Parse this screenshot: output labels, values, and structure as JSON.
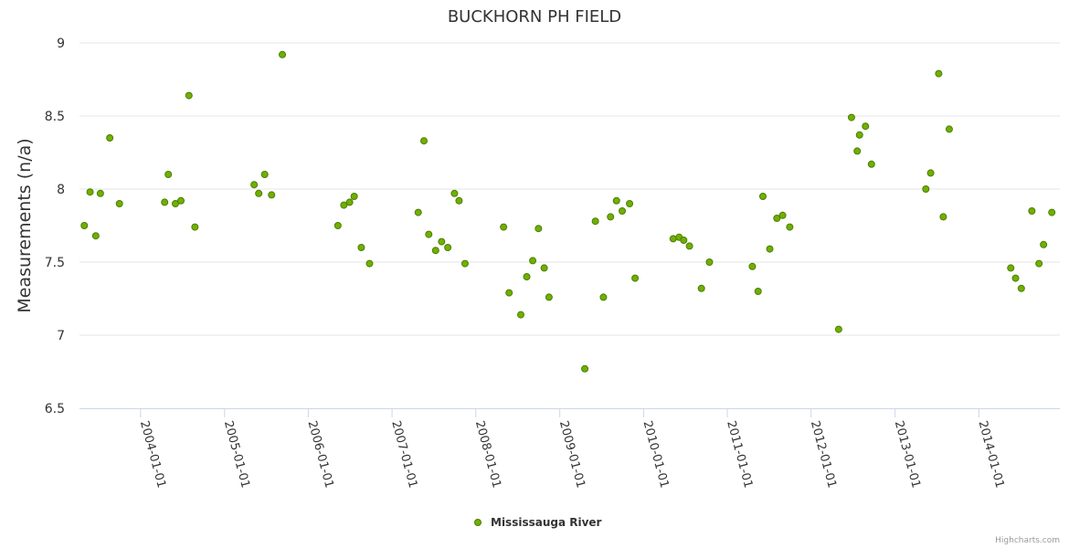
{
  "chart_data": {
    "type": "scatter",
    "title": "BUCKHORN PH FIELD",
    "xlabel": "",
    "ylabel": "Measurements (n/a)",
    "x_axis": "datetime",
    "xlim": [
      "2003-04-10",
      "2014-12-20"
    ],
    "ylim": [
      6.5,
      9
    ],
    "y_ticks": [
      6.5,
      7,
      7.5,
      8,
      8.5,
      9
    ],
    "x_ticks": [
      "2004-01-01",
      "2005-01-01",
      "2006-01-01",
      "2007-01-01",
      "2008-01-01",
      "2009-01-01",
      "2010-01-01",
      "2011-01-01",
      "2012-01-01",
      "2013-01-01",
      "2014-01-01"
    ],
    "grid": {
      "y": true,
      "x": false
    },
    "legend": {
      "position": "bottom-center"
    },
    "series": [
      {
        "name": "Mississauga River",
        "color": "#6fb000",
        "marker_border": "#4e7d00",
        "points": [
          [
            "2003-05-01",
            7.75
          ],
          [
            "2003-05-26",
            7.98
          ],
          [
            "2003-06-20",
            7.68
          ],
          [
            "2003-07-10",
            7.97
          ],
          [
            "2003-08-20",
            8.35
          ],
          [
            "2003-10-01",
            7.9
          ],
          [
            "2004-04-15",
            7.91
          ],
          [
            "2004-05-01",
            8.1
          ],
          [
            "2004-06-01",
            7.9
          ],
          [
            "2004-06-25",
            7.92
          ],
          [
            "2004-07-30",
            8.64
          ],
          [
            "2004-08-25",
            7.74
          ],
          [
            "2005-05-10",
            8.03
          ],
          [
            "2005-05-30",
            7.97
          ],
          [
            "2005-06-25",
            8.1
          ],
          [
            "2005-07-25",
            7.96
          ],
          [
            "2005-09-10",
            8.92
          ],
          [
            "2006-05-10",
            7.75
          ],
          [
            "2006-06-05",
            7.89
          ],
          [
            "2006-06-30",
            7.91
          ],
          [
            "2006-07-20",
            7.95
          ],
          [
            "2006-08-20",
            7.6
          ],
          [
            "2006-09-25",
            7.49
          ],
          [
            "2007-04-25",
            7.84
          ],
          [
            "2007-05-20",
            8.33
          ],
          [
            "2007-06-10",
            7.69
          ],
          [
            "2007-07-10",
            7.58
          ],
          [
            "2007-08-05",
            7.64
          ],
          [
            "2007-09-01",
            7.6
          ],
          [
            "2007-09-30",
            7.97
          ],
          [
            "2007-10-20",
            7.92
          ],
          [
            "2007-11-15",
            7.49
          ],
          [
            "2008-05-01",
            7.74
          ],
          [
            "2008-05-25",
            7.29
          ],
          [
            "2008-07-15",
            7.14
          ],
          [
            "2008-08-10",
            7.4
          ],
          [
            "2008-09-05",
            7.51
          ],
          [
            "2008-09-30",
            7.73
          ],
          [
            "2008-10-25",
            7.46
          ],
          [
            "2008-11-15",
            7.26
          ],
          [
            "2009-04-20",
            6.77
          ],
          [
            "2009-06-05",
            7.78
          ],
          [
            "2009-07-10",
            7.26
          ],
          [
            "2009-08-10",
            7.81
          ],
          [
            "2009-09-05",
            7.92
          ],
          [
            "2009-09-30",
            7.85
          ],
          [
            "2009-11-01",
            7.9
          ],
          [
            "2009-11-25",
            7.39
          ],
          [
            "2010-05-10",
            7.66
          ],
          [
            "2010-06-05",
            7.67
          ],
          [
            "2010-06-25",
            7.65
          ],
          [
            "2010-07-20",
            7.61
          ],
          [
            "2010-09-10",
            7.32
          ],
          [
            "2010-10-15",
            7.5
          ],
          [
            "2011-04-20",
            7.47
          ],
          [
            "2011-05-15",
            7.3
          ],
          [
            "2011-06-05",
            7.95
          ],
          [
            "2011-07-05",
            7.59
          ],
          [
            "2011-08-05",
            7.8
          ],
          [
            "2011-08-30",
            7.82
          ],
          [
            "2011-09-30",
            7.74
          ],
          [
            "2012-04-30",
            7.04
          ],
          [
            "2012-06-25",
            8.49
          ],
          [
            "2012-07-20",
            8.26
          ],
          [
            "2012-07-30",
            8.37
          ],
          [
            "2012-08-25",
            8.43
          ],
          [
            "2012-09-20",
            8.17
          ],
          [
            "2013-05-15",
            8.0
          ],
          [
            "2013-06-05",
            8.11
          ],
          [
            "2013-07-10",
            8.79
          ],
          [
            "2013-07-30",
            7.81
          ],
          [
            "2013-08-25",
            8.41
          ],
          [
            "2014-05-20",
            7.46
          ],
          [
            "2014-06-10",
            7.39
          ],
          [
            "2014-07-05",
            7.32
          ],
          [
            "2014-08-20",
            7.85
          ],
          [
            "2014-09-20",
            7.49
          ],
          [
            "2014-10-10",
            7.62
          ],
          [
            "2014-11-15",
            7.84
          ]
        ]
      }
    ]
  },
  "credits": "Highcharts.com"
}
